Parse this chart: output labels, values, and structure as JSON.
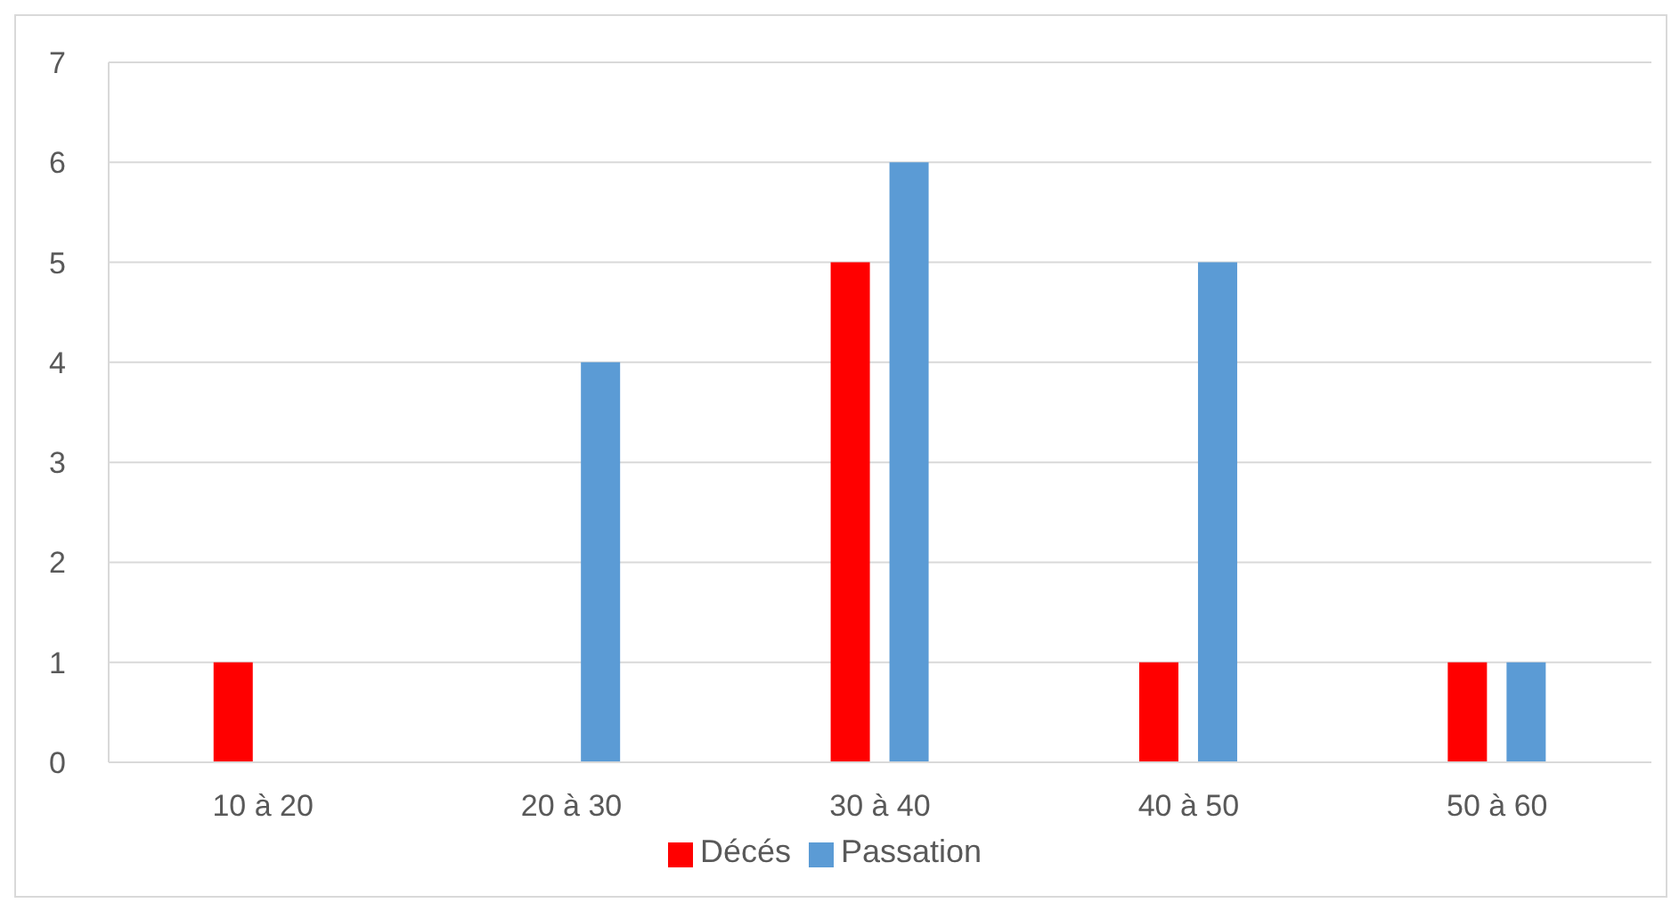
{
  "chart_data": {
    "type": "bar",
    "categories": [
      "10 à 20",
      "20 à 30",
      "30 à 40",
      "40 à 50",
      "50 à 60"
    ],
    "series": [
      {
        "name": "Décés",
        "color": "#ff0000",
        "values": [
          1,
          0,
          5,
          1,
          1
        ]
      },
      {
        "name": "Passation",
        "color": "#5b9bd5",
        "values": [
          0,
          4,
          6,
          5,
          1
        ]
      }
    ],
    "ylim": [
      0,
      7
    ],
    "yticks": [
      0,
      1,
      2,
      3,
      4,
      5,
      6,
      7
    ],
    "grid": "y",
    "legend": "bottom"
  }
}
